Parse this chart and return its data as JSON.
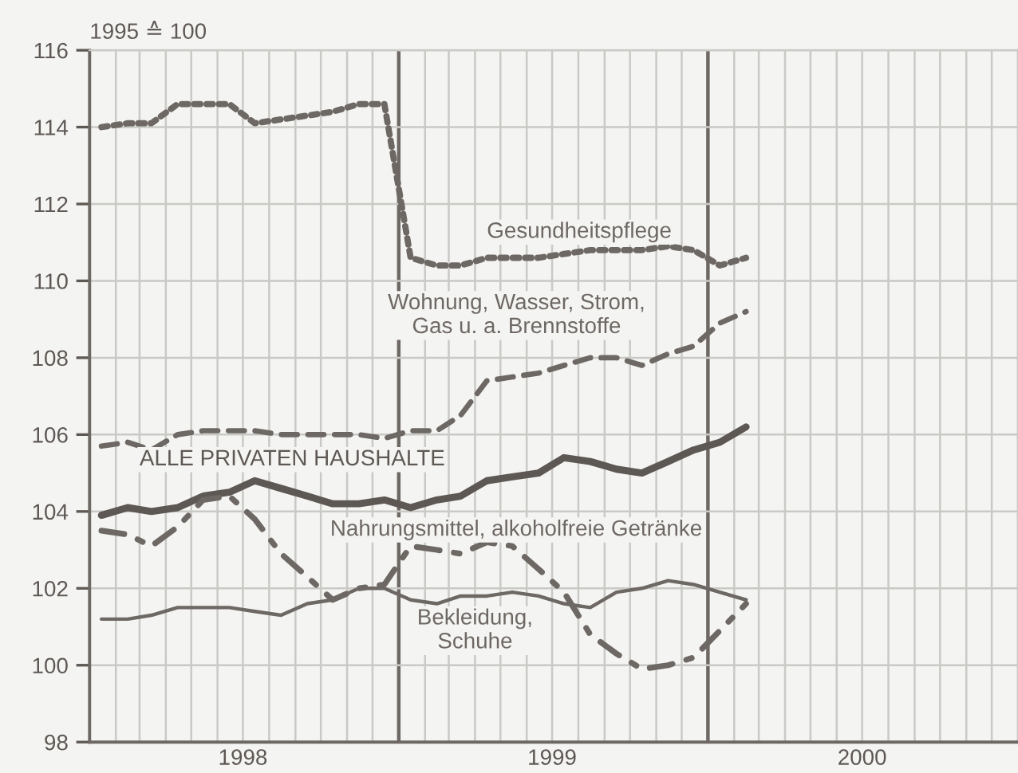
{
  "chart_data": {
    "type": "line",
    "ylabel": "1995 ≙ 100",
    "x": [
      "1998-01-15",
      "1998-02-15",
      "1998-03-15",
      "1998-04-15",
      "1998-05-15",
      "1998-06-15",
      "1998-07-15",
      "1998-08-15",
      "1998-09-15",
      "1998-10-15",
      "1998-11-15",
      "1998-12-15",
      "1999-01-15",
      "1999-02-15",
      "1999-03-15",
      "1999-04-15",
      "1999-05-15",
      "1999-06-15",
      "1999-07-15",
      "1999-08-15",
      "1999-09-15",
      "1999-10-15",
      "1999-11-15",
      "1999-12-15",
      "2000-01-15",
      "2000-02-15"
    ],
    "series": [
      {
        "name": "Gesundheitspflege",
        "color": "#6e6864",
        "line_style": "dotted",
        "values": [
          114.0,
          114.1,
          114.1,
          114.6,
          114.6,
          114.6,
          114.1,
          114.2,
          114.3,
          114.4,
          114.6,
          114.6,
          110.6,
          110.4,
          110.4,
          110.6,
          110.6,
          110.6,
          110.7,
          110.8,
          110.8,
          110.8,
          110.9,
          110.8,
          110.4,
          110.6
        ]
      },
      {
        "name": "Wohnung, Wasser, Strom,\nGas u. a. Brennstoffe",
        "color": "#6e6864",
        "line_style": "dashed",
        "values": [
          105.7,
          105.8,
          105.6,
          106.0,
          106.1,
          106.1,
          106.1,
          106.0,
          106.0,
          106.0,
          106.0,
          105.9,
          106.1,
          106.1,
          106.5,
          107.4,
          107.5,
          107.6,
          107.8,
          108.0,
          108.0,
          107.8,
          108.1,
          108.3,
          108.9,
          109.2
        ]
      },
      {
        "name": "ALLE PRIVATEN HAUSHALTE",
        "color": "#5e5854",
        "line_style": "solid",
        "values": [
          103.9,
          104.1,
          104.0,
          104.1,
          104.4,
          104.5,
          104.8,
          104.6,
          104.4,
          104.2,
          104.2,
          104.3,
          104.1,
          104.3,
          104.4,
          104.8,
          104.9,
          105.0,
          105.4,
          105.3,
          105.1,
          105.0,
          105.3,
          105.6,
          105.8,
          106.2
        ]
      },
      {
        "name": "Nahrungsmittel, alkoholfreie Getränke",
        "color": "#6e6864",
        "line_style": "dashdot",
        "values": [
          103.5,
          103.4,
          103.1,
          103.6,
          104.3,
          104.4,
          103.8,
          102.9,
          102.3,
          101.7,
          102.0,
          102.1,
          103.1,
          103.0,
          102.9,
          103.2,
          103.1,
          102.5,
          101.9,
          100.8,
          100.3,
          99.9,
          100.0,
          100.2,
          100.9,
          101.6
        ]
      },
      {
        "name": "Bekleidung,\nSchuhe",
        "color": "#6e6864",
        "line_style": "solid",
        "values": [
          101.2,
          101.2,
          101.3,
          101.5,
          101.5,
          101.5,
          101.4,
          101.3,
          101.6,
          101.7,
          102.0,
          102.0,
          101.7,
          101.6,
          101.8,
          101.8,
          101.9,
          101.8,
          101.6,
          101.5,
          101.9,
          102.0,
          102.2,
          102.1,
          101.9,
          101.7
        ]
      }
    ],
    "xlim": [
      "1998-01",
      "2001-01"
    ],
    "xticks": [
      {
        "value": "1998-01",
        "label": null
      },
      {
        "value": "1998-02",
        "label": null
      },
      {
        "value": "1998-03",
        "label": null
      },
      {
        "value": "1998-04",
        "label": null
      },
      {
        "value": "1998-05",
        "label": null
      },
      {
        "value": "1998-06",
        "label": null
      },
      {
        "value": "1998-07",
        "label": "1998"
      },
      {
        "value": "1998-08",
        "label": null
      },
      {
        "value": "1998-09",
        "label": null
      },
      {
        "value": "1998-10",
        "label": null
      },
      {
        "value": "1998-11",
        "label": null
      },
      {
        "value": "1998-12",
        "label": null
      },
      {
        "value": "1999-01",
        "label": null
      },
      {
        "value": "1999-02",
        "label": null
      },
      {
        "value": "1999-03",
        "label": null
      },
      {
        "value": "1999-04",
        "label": null
      },
      {
        "value": "1999-05",
        "label": null
      },
      {
        "value": "1999-06",
        "label": null
      },
      {
        "value": "1999-07",
        "label": "1999"
      },
      {
        "value": "1999-08",
        "label": null
      },
      {
        "value": "1999-09",
        "label": null
      },
      {
        "value": "1999-10",
        "label": null
      },
      {
        "value": "1999-11",
        "label": null
      },
      {
        "value": "1999-12",
        "label": null
      },
      {
        "value": "2000-01",
        "label": null
      },
      {
        "value": "2000-02",
        "label": null
      },
      {
        "value": "2000-03",
        "label": null
      },
      {
        "value": "2000-04",
        "label": null
      },
      {
        "value": "2000-05",
        "label": null
      },
      {
        "value": "2000-06",
        "label": null
      },
      {
        "value": "2000-07",
        "label": "2000"
      },
      {
        "value": "2000-08",
        "label": null
      },
      {
        "value": "2000-09",
        "label": null
      },
      {
        "value": "2000-10",
        "label": null
      },
      {
        "value": "2000-11",
        "label": null
      },
      {
        "value": "2000-12",
        "label": null
      },
      {
        "value": "2001-01",
        "label": null
      }
    ],
    "ylim": [
      98,
      116
    ],
    "yticks": [
      98,
      100,
      102,
      104,
      106,
      108,
      110,
      112,
      114,
      116
    ],
    "grid": true,
    "legend": false
  }
}
